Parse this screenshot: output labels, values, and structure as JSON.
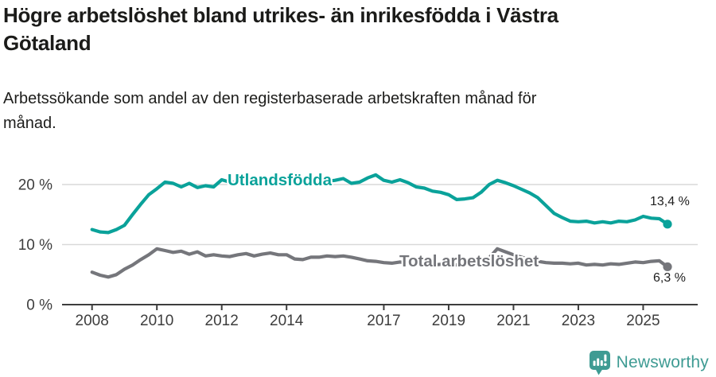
{
  "header": {
    "title_lines": [
      "Högre arbetslöshet bland utrikes- än inrikesfödda i Västra",
      "Götaland"
    ],
    "subtitle_lines": [
      "Arbetssökande som andel av den registerbaserade arbetskraften månad för",
      "månad."
    ]
  },
  "chart_data": {
    "type": "line",
    "title": "Högre arbetslöshet bland utrikes- än inrikesfödda i Västra Götaland",
    "subtitle": "Arbetssökande som andel av den registerbaserade arbetskraften månad för månad.",
    "unit": "%",
    "x_start": 2008.0,
    "x_step": 0.25,
    "x_range": [
      2008,
      2025.75
    ],
    "ylim": [
      0,
      25.5
    ],
    "grid": "horizontal",
    "legend_position": "inline-labels",
    "x_axis": {
      "ticks": [
        "2008",
        "2010",
        "2012",
        "2014",
        "2017",
        "2019",
        "2021",
        "2023",
        "2025"
      ]
    },
    "y_axis": {
      "ticks": [
        {
          "value": 0,
          "label": "0 %"
        },
        {
          "value": 10,
          "label": "10 %"
        },
        {
          "value": 20,
          "label": "20 %"
        }
      ]
    },
    "series": [
      {
        "name": "Utlandsfödda",
        "color": "#0aa29a",
        "end_label": "13,4 %",
        "last_value": 13.4,
        "values": [
          12.5,
          12.1,
          12.0,
          12.5,
          13.2,
          15.0,
          16.7,
          18.3,
          19.3,
          20.4,
          20.2,
          19.6,
          20.2,
          19.5,
          19.8,
          19.6,
          20.8,
          20.4,
          20.3,
          20.5,
          20.7,
          20.5,
          20.4,
          20.6,
          20.5,
          20.3,
          20.2,
          20.4,
          20.6,
          20.5,
          20.7,
          21.0,
          20.2,
          20.4,
          21.1,
          21.6,
          20.7,
          20.4,
          20.8,
          20.3,
          19.6,
          19.4,
          18.9,
          18.7,
          18.3,
          17.5,
          17.6,
          17.8,
          18.7,
          20.0,
          20.7,
          20.3,
          19.8,
          19.2,
          18.6,
          17.8,
          16.5,
          15.2,
          14.5,
          13.9,
          13.8,
          13.9,
          13.6,
          13.8,
          13.6,
          13.9,
          13.8,
          14.1,
          14.7,
          14.4,
          14.3,
          13.4
        ]
      },
      {
        "name": "Total arbetslöshet",
        "color": "#75767b",
        "end_label": "6,3 %",
        "last_value": 6.3,
        "values": [
          5.4,
          4.9,
          4.6,
          5.0,
          5.9,
          6.6,
          7.5,
          8.3,
          9.3,
          9.0,
          8.7,
          8.9,
          8.4,
          8.8,
          8.1,
          8.3,
          8.1,
          8.0,
          8.3,
          8.5,
          8.1,
          8.4,
          8.6,
          8.3,
          8.3,
          7.6,
          7.5,
          7.9,
          7.9,
          8.1,
          8.0,
          8.1,
          7.9,
          7.6,
          7.3,
          7.2,
          7.0,
          6.9,
          7.1,
          6.9,
          6.8,
          6.7,
          6.6,
          6.7,
          6.7,
          6.6,
          6.8,
          7.0,
          7.2,
          7.8,
          9.3,
          8.8,
          8.3,
          7.9,
          7.5,
          7.2,
          7.0,
          6.9,
          6.9,
          6.8,
          6.9,
          6.6,
          6.7,
          6.6,
          6.8,
          6.7,
          6.9,
          7.1,
          7.0,
          7.2,
          7.3,
          6.3
        ]
      }
    ]
  },
  "footer": {
    "brand": "Newsworthy",
    "brand_color": "#3e9b93",
    "logo_icon": "speech-bubble-bar-chart-icon"
  }
}
